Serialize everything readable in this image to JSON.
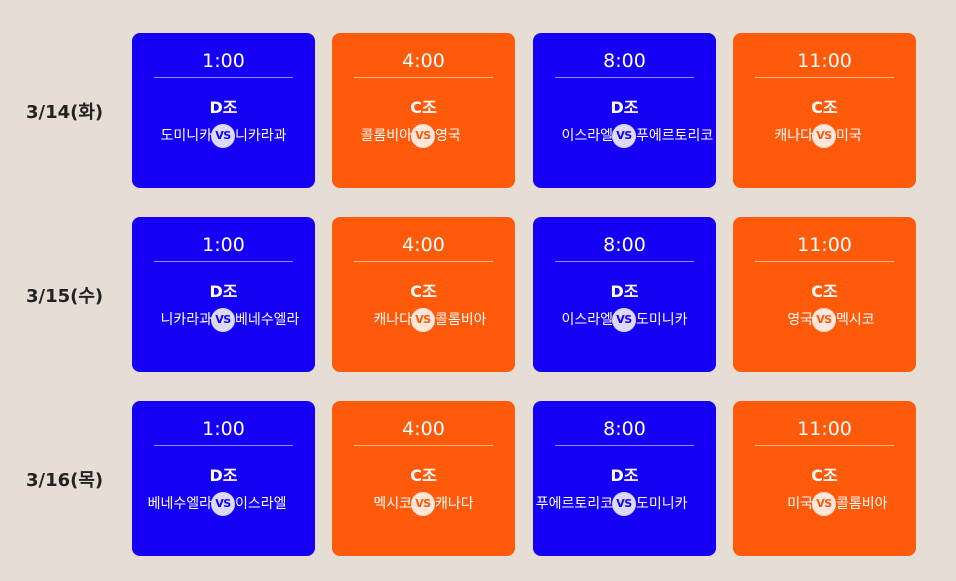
{
  "schedule": [
    {
      "date": "3/14(화)",
      "games": [
        {
          "time": "1:00",
          "group": "D조",
          "home": "도미니카",
          "away": "니카라과",
          "vs": "VS",
          "color": "blue"
        },
        {
          "time": "4:00",
          "group": "C조",
          "home": "콜롬비아",
          "away": "영국",
          "vs": "VS",
          "color": "orange"
        },
        {
          "time": "8:00",
          "group": "D조",
          "home": "이스라엘",
          "away": "푸에르토리코",
          "vs": "VS",
          "color": "blue"
        },
        {
          "time": "11:00",
          "group": "C조",
          "home": "캐나다",
          "away": "미국",
          "vs": "VS",
          "color": "orange"
        }
      ]
    },
    {
      "date": "3/15(수)",
      "games": [
        {
          "time": "1:00",
          "group": "D조",
          "home": "니카라과",
          "away": "베네수엘라",
          "vs": "VS",
          "color": "blue"
        },
        {
          "time": "4:00",
          "group": "C조",
          "home": "캐나다",
          "away": "콜롬비아",
          "vs": "VS",
          "color": "orange"
        },
        {
          "time": "8:00",
          "group": "D조",
          "home": "이스라엘",
          "away": "도미니카",
          "vs": "VS",
          "color": "blue"
        },
        {
          "time": "11:00",
          "group": "C조",
          "home": "영국",
          "away": "멕시코",
          "vs": "VS",
          "color": "orange"
        }
      ]
    },
    {
      "date": "3/16(목)",
      "games": [
        {
          "time": "1:00",
          "group": "D조",
          "home": "베네수엘라",
          "away": "이스라엘",
          "vs": "VS",
          "color": "blue"
        },
        {
          "time": "4:00",
          "group": "C조",
          "home": "멕시코",
          "away": "캐나다",
          "vs": "VS",
          "color": "orange"
        },
        {
          "time": "8:00",
          "group": "D조",
          "home": "푸에르토리코",
          "away": "도미니카",
          "vs": "VS",
          "color": "blue"
        },
        {
          "time": "11:00",
          "group": "C조",
          "home": "미국",
          "away": "콜롬비아",
          "vs": "VS",
          "color": "orange"
        }
      ]
    }
  ],
  "colors": {
    "blue": "#1500f5",
    "orange": "#ff5a0a",
    "background": "#e6ddd5"
  }
}
